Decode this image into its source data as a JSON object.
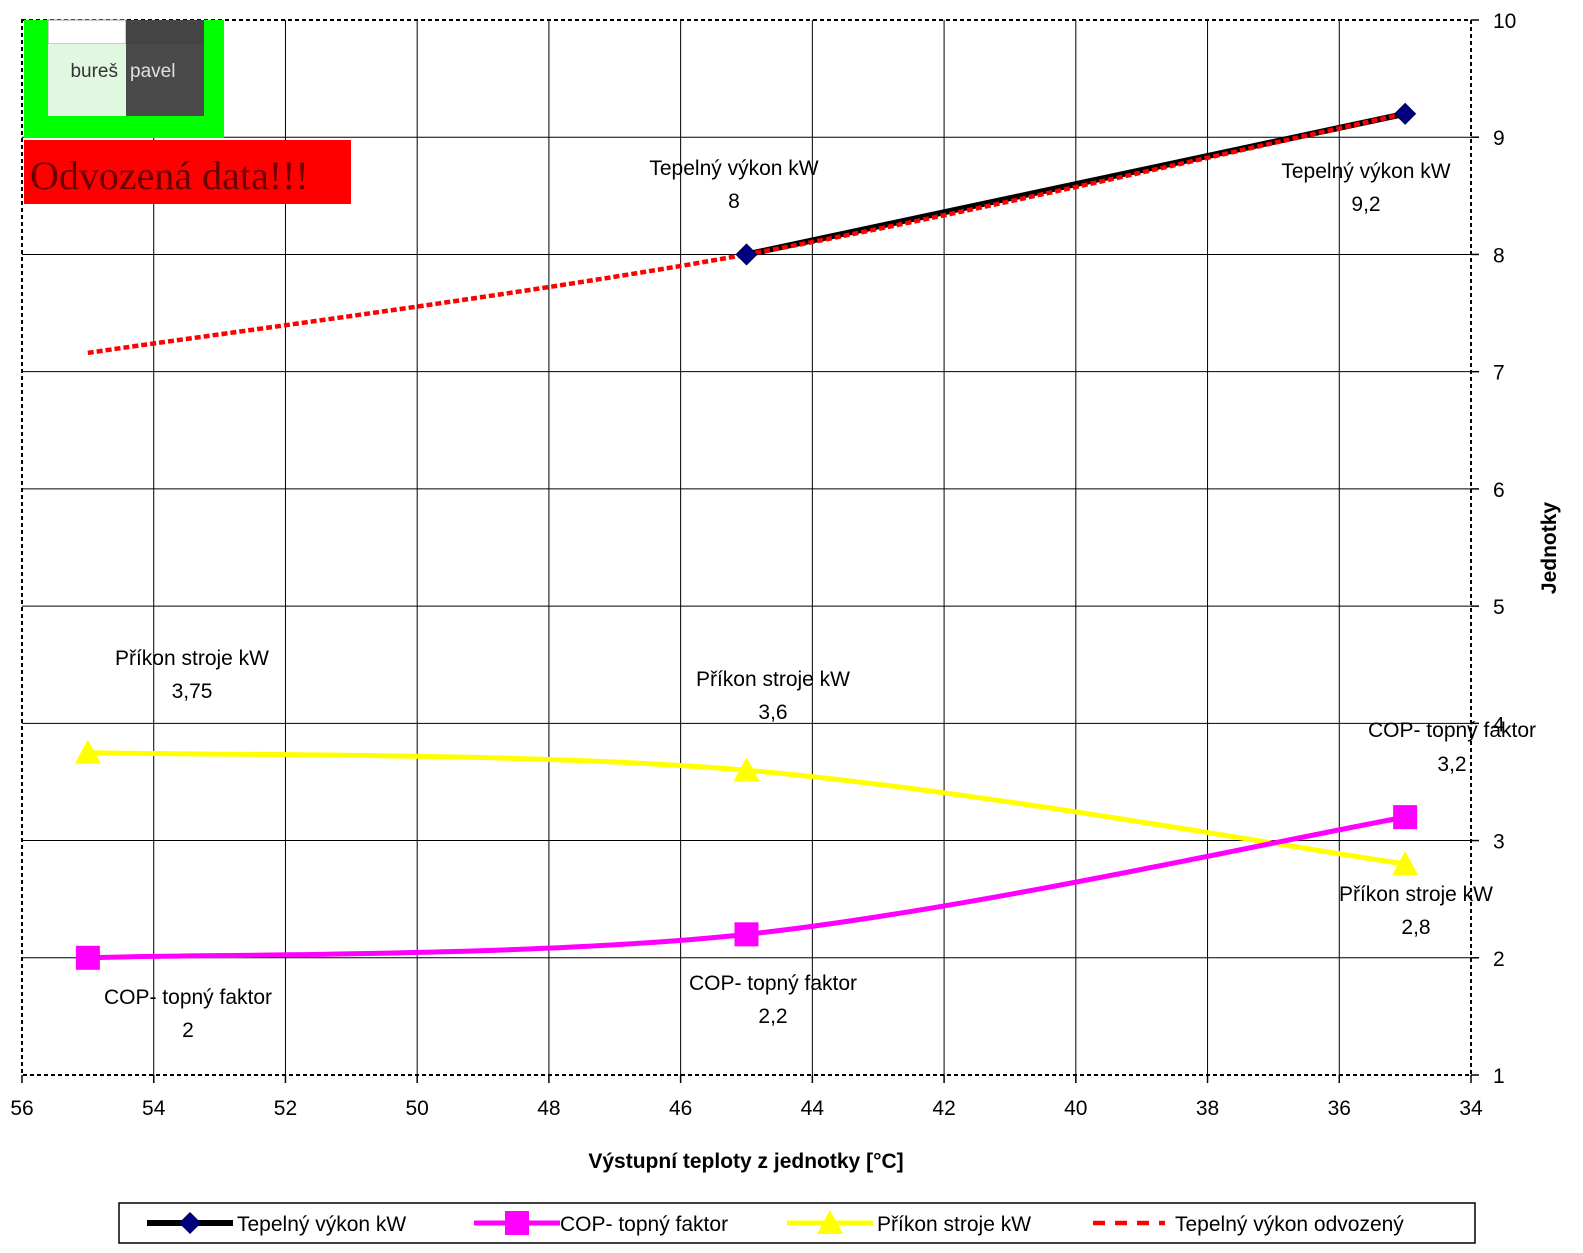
{
  "logo": {
    "left_text": "bureš",
    "right_text": "pavel"
  },
  "banner": {
    "text": "Odvozená data!!!"
  },
  "colors": {
    "tepelny": "#000000",
    "tepelny_marker": "#000080",
    "cop": "#ff00ff",
    "prikon": "#ffff00",
    "odvozeny": "#ff0000",
    "logo_green": "#00ff00",
    "banner_red": "#ff0000"
  },
  "chart_data": {
    "type": "line",
    "xlabel": "Výstupní teploty z jednotky [°C]",
    "ylabel": "Jednotky",
    "x_reversed": true,
    "xlim": [
      34,
      56
    ],
    "ylim": [
      1,
      10
    ],
    "x_ticks": [
      "56",
      "54",
      "52",
      "50",
      "48",
      "46",
      "44",
      "42",
      "40",
      "38",
      "36",
      "34"
    ],
    "y_ticks": [
      "1",
      "2",
      "3",
      "4",
      "5",
      "6",
      "7",
      "8",
      "9",
      "10"
    ],
    "grid": true,
    "legend_position": "bottom",
    "series": [
      {
        "name": "Tepelný výkon kW",
        "marker": "diamond",
        "points": [
          [
            45,
            8
          ],
          [
            35,
            9.2
          ]
        ]
      },
      {
        "name": "COP- topný faktor",
        "marker": "square",
        "points": [
          [
            55,
            2
          ],
          [
            45,
            2.2
          ],
          [
            35,
            3.2
          ]
        ]
      },
      {
        "name": "Příkon stroje kW",
        "marker": "triangle",
        "points": [
          [
            55,
            3.75
          ],
          [
            45,
            3.6
          ],
          [
            35,
            2.8
          ]
        ]
      },
      {
        "name": "Tepelný výkon odvozený",
        "marker": "none",
        "dashed": true,
        "points": [
          [
            55,
            7.16
          ],
          [
            45,
            8
          ],
          [
            35,
            9.2
          ]
        ]
      }
    ],
    "data_labels": [
      {
        "series": "Tepelný výkon kW",
        "value": "8"
      },
      {
        "series": "Tepelný výkon kW",
        "value": "9,2"
      },
      {
        "series": "COP- topný faktor",
        "value": "2"
      },
      {
        "series": "COP- topný faktor",
        "value": "2,2"
      },
      {
        "series": "COP- topný faktor",
        "value": "3,2"
      },
      {
        "series": "Příkon stroje kW",
        "value": "3,75"
      },
      {
        "series": "Příkon stroje kW",
        "value": "3,6"
      },
      {
        "series": "Příkon stroje kW",
        "value": "2,8"
      }
    ]
  }
}
